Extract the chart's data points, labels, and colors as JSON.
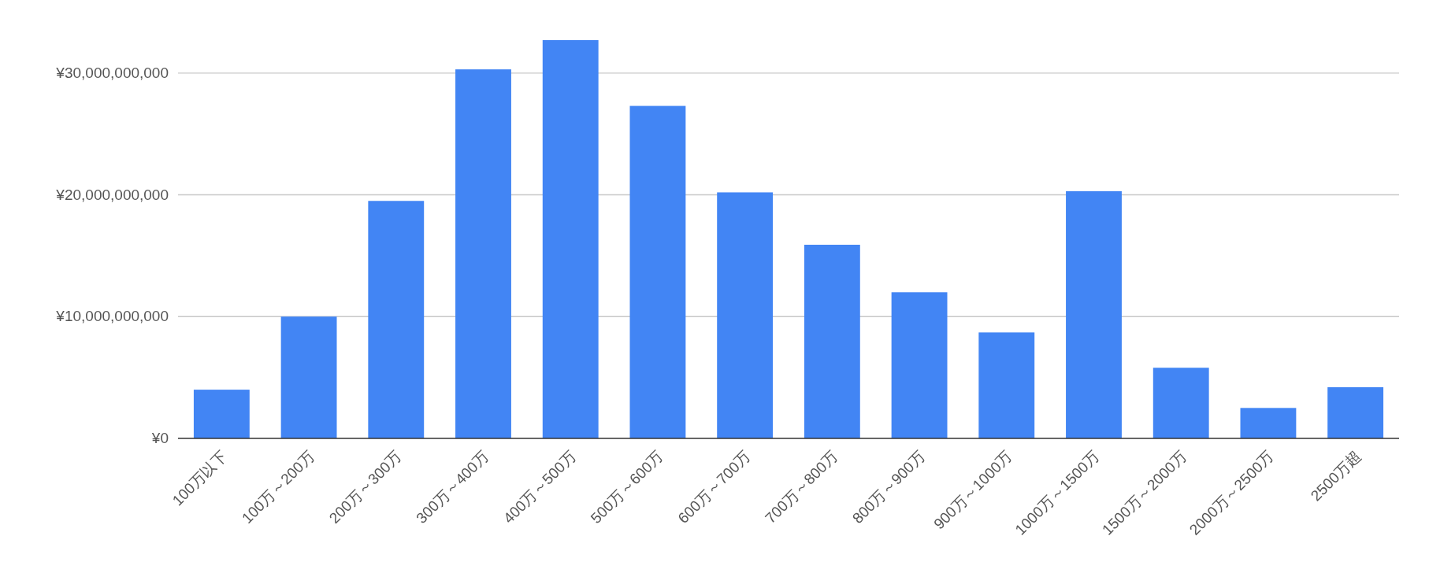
{
  "chart_data": {
    "type": "bar",
    "categories": [
      "100万以下",
      "100万～200万",
      "200万～300万",
      "300万～400万",
      "400万～500万",
      "500万～600万",
      "600万～700万",
      "700万～800万",
      "800万～900万",
      "900万～1000万",
      "1000万～1500万",
      "1500万～2000万",
      "2000万～2500万",
      "2500万超"
    ],
    "values": [
      4000000000,
      10000000000,
      19500000000,
      30300000000,
      32700000000,
      27300000000,
      20200000000,
      15900000000,
      12000000000,
      8700000000,
      20300000000,
      5800000000,
      2500000000,
      4200000000
    ],
    "color": "#4285f4",
    "ylim": [
      0,
      32700000000
    ],
    "yticks": [
      {
        "value": 0,
        "label": "¥0"
      },
      {
        "value": 10000000000,
        "label": "¥10,000,000,000"
      },
      {
        "value": 20000000000,
        "label": "¥20,000,000,000"
      },
      {
        "value": 30000000000,
        "label": "¥30,000,000,000"
      }
    ],
    "grid": "y"
  }
}
